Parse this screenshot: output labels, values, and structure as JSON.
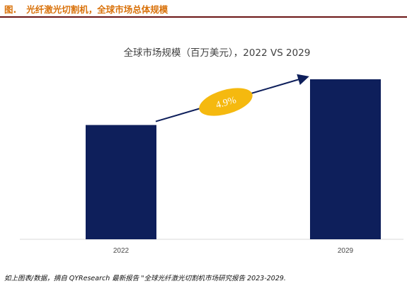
{
  "header": {
    "label": "图.",
    "title": "光纤激光切割机，全球市场总体规模"
  },
  "chart_data": {
    "type": "bar",
    "title": "全球市场规模（百万美元），2022 VS 2029",
    "categories": [
      "2022",
      "2029"
    ],
    "values": [
      1000,
      1400
    ],
    "annotation": "4.9%",
    "colors": {
      "bar": "#0e1f5b",
      "badge": "#f5b90f",
      "badge_text": "#ffffff",
      "arrow": "#0e1f5b"
    },
    "grid": false,
    "legend": "none"
  },
  "footnote": "如上图表/数据，摘自 QYResearch 最新报告 \"全球光纤激光切割机市场研究报告 2023-2029."
}
